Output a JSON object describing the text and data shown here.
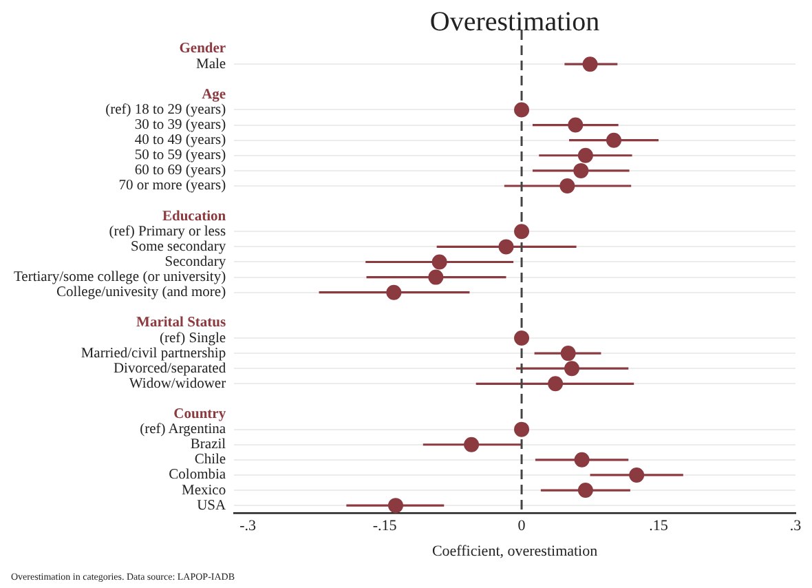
{
  "chart_data": {
    "type": "scatter",
    "orientation": "horizontal",
    "title": "Overestimation",
    "xlabel": "Coefficient, overestimation",
    "categories": [
      "Gender",
      "Male",
      null,
      "Age",
      "(ref) 18 to 29 (years)",
      "30 to 39 (years)",
      "40 to 49 (years)",
      "50 to 59 (years)",
      "60 to 69 (years)",
      "70 or more (years)",
      null,
      "Education",
      "(ref) Primary or less",
      "Some secondary",
      "Secondary",
      "Tertiary/some college (or university)",
      "College/univesity (and more)",
      null,
      "Marital Status",
      "(ref) Single",
      "Married/civil partnership",
      "Divorced/separated",
      "Widow/widower",
      null,
      "Country",
      "(ref) Argentina",
      "Brazil",
      "Chile",
      "Colombia",
      "Mexico",
      "USA"
    ],
    "values": [
      null,
      0.075,
      null,
      null,
      0,
      0.059,
      0.101,
      0.07,
      0.065,
      0.05,
      null,
      null,
      0,
      -0.017,
      -0.09,
      -0.094,
      -0.14,
      null,
      null,
      0,
      0.051,
      0.055,
      0.037,
      null,
      null,
      0,
      -0.055,
      0.066,
      0.126,
      0.07,
      -0.138
    ],
    "errors": [
      null,
      [
        0.047,
        0.105
      ],
      null,
      null,
      null,
      [
        0.012,
        0.106
      ],
      [
        0.052,
        0.15
      ],
      [
        0.019,
        0.121
      ],
      [
        0.012,
        0.118
      ],
      [
        -0.019,
        0.12
      ],
      null,
      null,
      null,
      [
        -0.093,
        0.06
      ],
      [
        -0.171,
        -0.009
      ],
      [
        -0.17,
        -0.017
      ],
      [
        -0.222,
        -0.057
      ],
      null,
      null,
      null,
      [
        0.014,
        0.087
      ],
      [
        -0.006,
        0.117
      ],
      [
        -0.05,
        0.123
      ],
      null,
      null,
      null,
      [
        -0.108,
        0
      ],
      [
        0.015,
        0.117
      ],
      [
        0.075,
        0.177
      ],
      [
        0.021,
        0.119
      ],
      [
        -0.192,
        -0.085
      ]
    ],
    "color": "#8b3a40",
    "marker": "circle",
    "grid": "y",
    "legend": false,
    "xlim": [
      -0.315,
      0.3
    ],
    "xticks": [
      {
        "value": -0.3,
        "label": "-.3"
      },
      {
        "value": -0.15,
        "label": "-.15"
      },
      0,
      {
        "value": 0.15,
        "label": ".15"
      },
      {
        "value": 0.3,
        "label": ".3"
      }
    ],
    "ref_lines": [
      {
        "axis": "x",
        "value": 0,
        "color": "#444444",
        "line_style": "dashed"
      }
    ],
    "annotations": [
      "Overestimation in categories. Data source: LAPOP-IADB"
    ]
  }
}
